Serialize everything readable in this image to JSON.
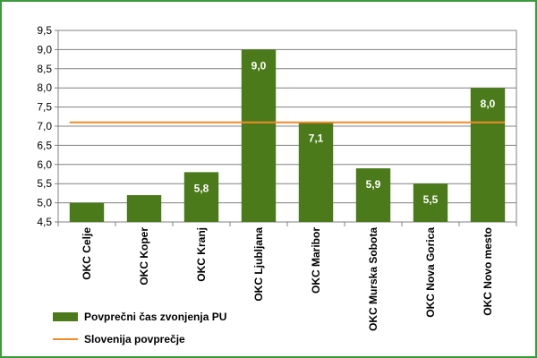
{
  "chart_data": {
    "type": "bar",
    "categories": [
      "OKC Celje",
      "OKC Koper",
      "OKC Kranj",
      "OKC Ljubljana",
      "OKC Maribor",
      "OKC Murska Sobota",
      "OKC Nova Gorica",
      "OKC Novo mesto"
    ],
    "series": [
      {
        "name": "Povprečni čas zvonjenja PU",
        "values": [
          5.0,
          5.2,
          5.8,
          9.0,
          7.1,
          5.9,
          5.5,
          8.0
        ],
        "data_labels": [
          "",
          "",
          "5,8",
          "9,0",
          "7,1",
          "5,9",
          "5,5",
          "8,0"
        ],
        "color": "#4a7a1a"
      }
    ],
    "reference_line": {
      "name": "Slovenija povprečje",
      "value": 7.1,
      "color": "#f08c2a"
    },
    "ylim": [
      4.5,
      9.5
    ],
    "yticks": [
      "4,5",
      "5,0",
      "5,5",
      "6,0",
      "6,5",
      "7,0",
      "7,5",
      "8,0",
      "8,5",
      "9,0",
      "9,5"
    ],
    "grid": true,
    "legend": "bottom-left",
    "title": "",
    "xlabel": "",
    "ylabel": ""
  },
  "frame_color": "#3c9a3c",
  "plot_border_color": "#808080"
}
